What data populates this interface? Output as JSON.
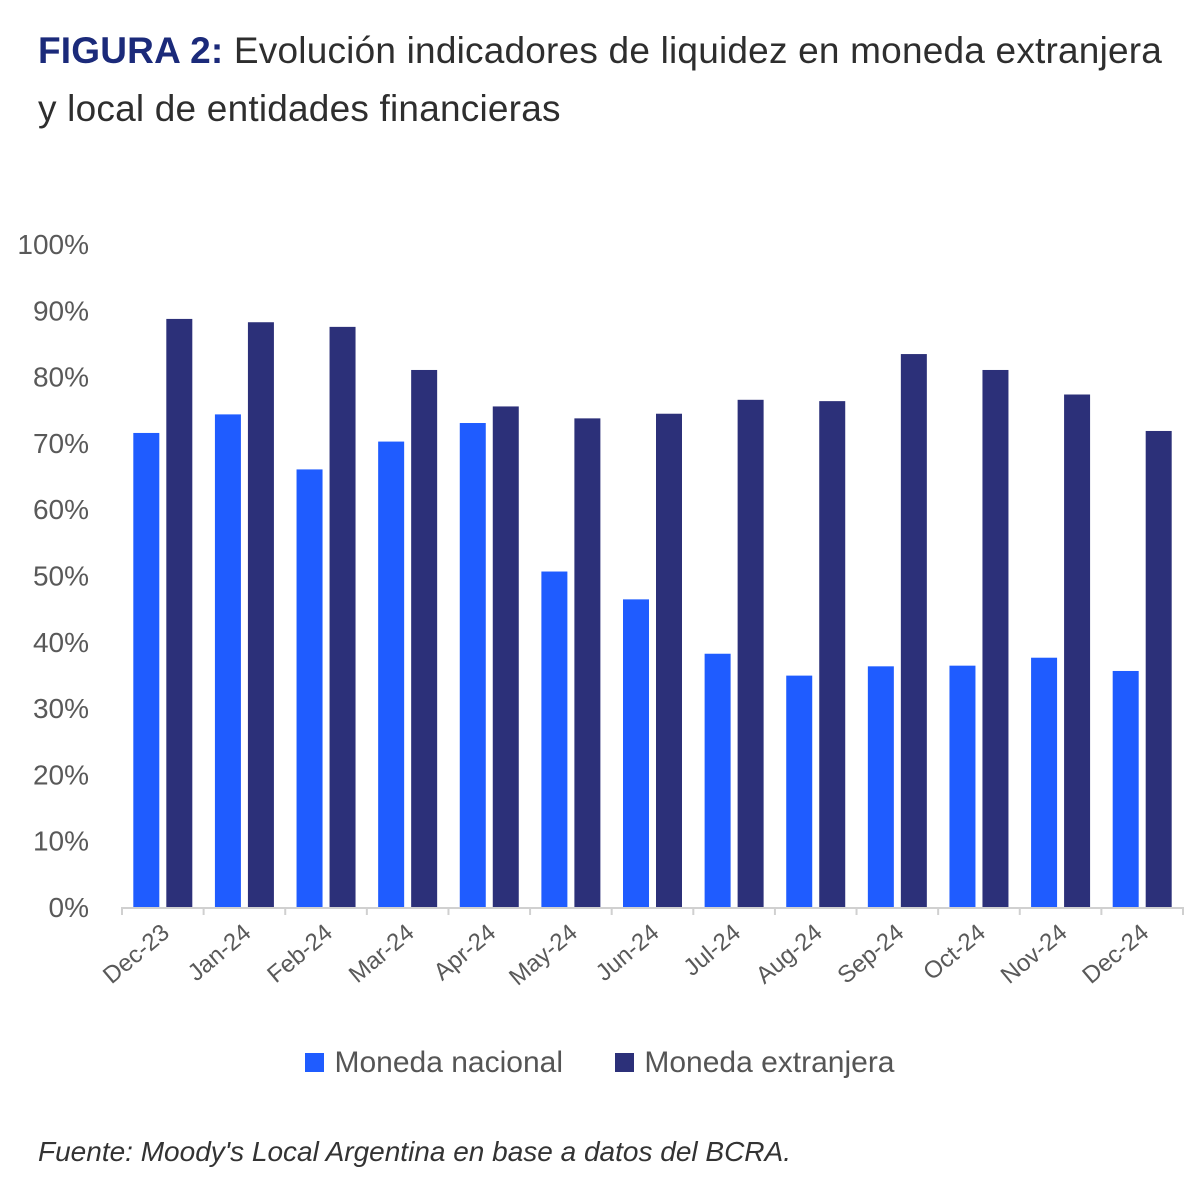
{
  "figure": {
    "label": "FIGURA 2:",
    "title": "Evolución indicadores de liquidez en moneda extranjera y local de entidades financieras"
  },
  "chart_data": {
    "type": "bar",
    "categories": [
      "Dec-23",
      "Jan-24",
      "Feb-24",
      "Mar-24",
      "Apr-24",
      "May-24",
      "Jun-24",
      "Jul-24",
      "Aug-24",
      "Sep-24",
      "Oct-24",
      "Nov-24",
      "Dec-24"
    ],
    "series": [
      {
        "name": "Moneda nacional",
        "color": "#1f5cff",
        "values": [
          71.5,
          74.3,
          66.0,
          70.2,
          73.0,
          50.6,
          46.4,
          38.2,
          34.9,
          36.3,
          36.4,
          37.6,
          35.6
        ]
      },
      {
        "name": "Moneda extranjera",
        "color": "#2c3079",
        "values": [
          88.7,
          88.2,
          87.5,
          81.0,
          75.5,
          73.7,
          74.4,
          76.5,
          76.3,
          83.4,
          81.0,
          77.3,
          71.8
        ]
      }
    ],
    "yticks": [
      "0%",
      "10%",
      "20%",
      "30%",
      "40%",
      "50%",
      "60%",
      "70%",
      "80%",
      "90%",
      "100%"
    ],
    "ylim": [
      0,
      100
    ],
    "xlabel": "",
    "ylabel": "",
    "legend_position": "bottom"
  },
  "source": "Fuente: Moody's Local Argentina  en base a datos del BCRA."
}
